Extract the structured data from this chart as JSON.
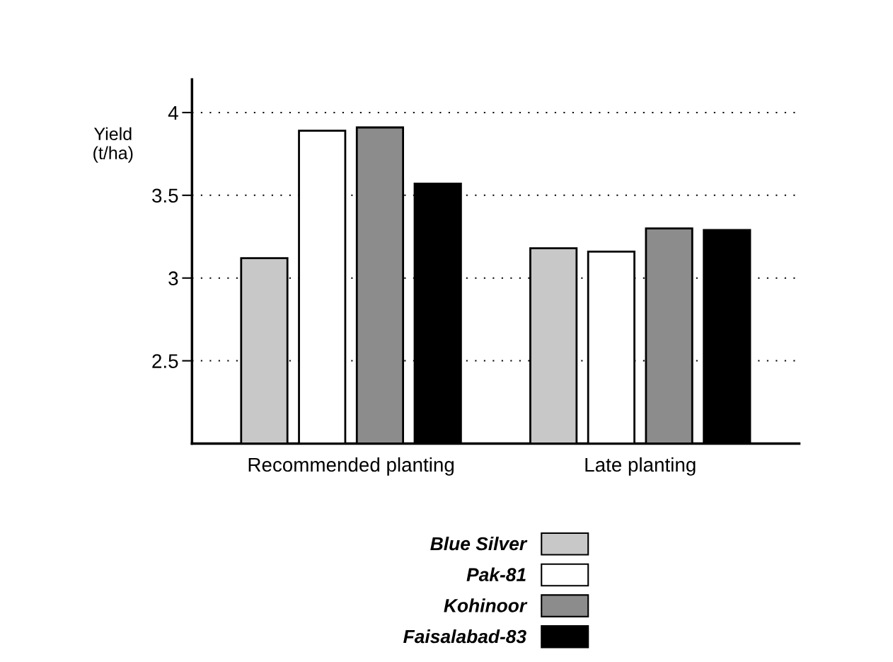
{
  "chart_data": {
    "type": "bar",
    "ylabel": "Yield\n(t/ha)",
    "categories": [
      "Recommended planting",
      "Late planting"
    ],
    "series": [
      {
        "name": "Blue Silver",
        "color": "#c8c8c8",
        "values": [
          3.12,
          3.18
        ]
      },
      {
        "name": "Pak-81",
        "color": "#ffffff",
        "values": [
          3.89,
          3.16
        ]
      },
      {
        "name": "Kohinoor",
        "color": "#8c8c8c",
        "values": [
          3.91,
          3.3
        ]
      },
      {
        "name": "Faisalabad-83",
        "color": "#000000",
        "values": [
          3.57,
          3.29
        ]
      }
    ],
    "ylim": [
      2,
      4.2
    ],
    "yticks": [
      2.5,
      3,
      3.5,
      4
    ],
    "grid": "y",
    "legend": "bottom"
  }
}
